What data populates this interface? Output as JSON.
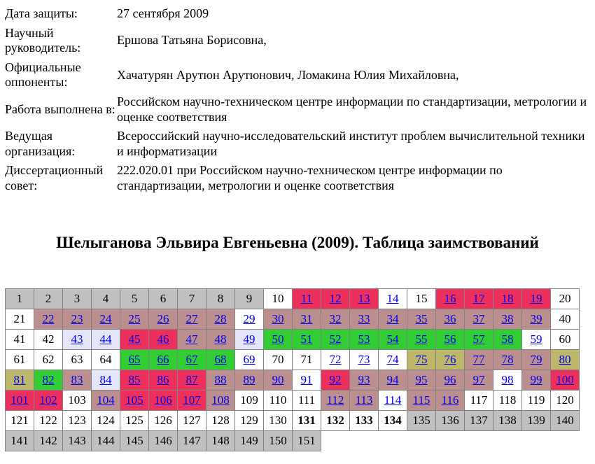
{
  "page": {
    "background": "#FFFFFF",
    "text_color": "#000000"
  },
  "meta": {
    "rows": [
      {
        "label": "Дата защиты:",
        "value": "27 сентября 2009"
      },
      {
        "label": "Научный руководитель:",
        "value": "Ершова Татьяна Борисовна,"
      },
      {
        "label": "Официальные оппоненты:",
        "value": "Хачатурян Арутюн Арутюнович, Ломакина Юлия Михайловна,"
      },
      {
        "label": "Работа выполнена в:",
        "value": "Российском научно-техническом центре информации по стандартизации, метрологии и оценке соответствия"
      },
      {
        "label": "Ведущая организация:",
        "value": "Всероссийский научно-исследовательский институт проблем вычислительной техники и информатизации"
      },
      {
        "label": "Диссертационный совет:",
        "value": "222.020.01 при Российском научно-техническом центре информации по стандартизации, метрологии и оценке соответствия"
      }
    ]
  },
  "title": "Шелыганова Эльвира Евгеньевна (2009). Таблица заимствований",
  "colors": {
    "white": "#FFFFFF",
    "silver": "#C0C0C0",
    "crimson": "#ED2F5B",
    "rosybrown": "#BC8F8F",
    "limegreen": "#32CD32",
    "darkkhaki": "#BDB76B",
    "lavender": "#E6E6FA",
    "link": "#0000EE",
    "border": "#828282"
  },
  "grid": {
    "columns": 20,
    "cells": [
      {
        "n": 1,
        "bg": "silver",
        "link": false
      },
      {
        "n": 2,
        "bg": "silver",
        "link": false
      },
      {
        "n": 3,
        "bg": "silver",
        "link": false
      },
      {
        "n": 4,
        "bg": "silver",
        "link": false
      },
      {
        "n": 5,
        "bg": "silver",
        "link": false
      },
      {
        "n": 6,
        "bg": "silver",
        "link": false
      },
      {
        "n": 7,
        "bg": "silver",
        "link": false
      },
      {
        "n": 8,
        "bg": "silver",
        "link": false
      },
      {
        "n": 9,
        "bg": "silver",
        "link": false
      },
      {
        "n": 10,
        "bg": "white",
        "link": false
      },
      {
        "n": 11,
        "bg": "crimson",
        "link": true
      },
      {
        "n": 12,
        "bg": "crimson",
        "link": true
      },
      {
        "n": 13,
        "bg": "crimson",
        "link": true
      },
      {
        "n": 14,
        "bg": "white",
        "link": true
      },
      {
        "n": 15,
        "bg": "white",
        "link": false
      },
      {
        "n": 16,
        "bg": "crimson",
        "link": true
      },
      {
        "n": 17,
        "bg": "crimson",
        "link": true
      },
      {
        "n": 18,
        "bg": "crimson",
        "link": true
      },
      {
        "n": 19,
        "bg": "crimson",
        "link": true
      },
      {
        "n": 20,
        "bg": "white",
        "link": false
      },
      {
        "n": 21,
        "bg": "white",
        "link": false
      },
      {
        "n": 22,
        "bg": "rosybrown",
        "link": true
      },
      {
        "n": 23,
        "bg": "rosybrown",
        "link": true
      },
      {
        "n": 24,
        "bg": "rosybrown",
        "link": true
      },
      {
        "n": 25,
        "bg": "rosybrown",
        "link": true
      },
      {
        "n": 26,
        "bg": "rosybrown",
        "link": true
      },
      {
        "n": 27,
        "bg": "rosybrown",
        "link": true
      },
      {
        "n": 28,
        "bg": "rosybrown",
        "link": true
      },
      {
        "n": 29,
        "bg": "white",
        "link": true
      },
      {
        "n": 30,
        "bg": "rosybrown",
        "link": true
      },
      {
        "n": 31,
        "bg": "rosybrown",
        "link": true
      },
      {
        "n": 32,
        "bg": "rosybrown",
        "link": true
      },
      {
        "n": 33,
        "bg": "rosybrown",
        "link": true
      },
      {
        "n": 34,
        "bg": "rosybrown",
        "link": true
      },
      {
        "n": 35,
        "bg": "rosybrown",
        "link": true
      },
      {
        "n": 36,
        "bg": "rosybrown",
        "link": true
      },
      {
        "n": 37,
        "bg": "rosybrown",
        "link": true
      },
      {
        "n": 38,
        "bg": "rosybrown",
        "link": true
      },
      {
        "n": 39,
        "bg": "rosybrown",
        "link": true
      },
      {
        "n": 40,
        "bg": "white",
        "link": false
      },
      {
        "n": 41,
        "bg": "white",
        "link": false
      },
      {
        "n": 42,
        "bg": "white",
        "link": false
      },
      {
        "n": 43,
        "bg": "lavender",
        "link": true
      },
      {
        "n": 44,
        "bg": "lavender",
        "link": true
      },
      {
        "n": 45,
        "bg": "crimson",
        "link": true
      },
      {
        "n": 46,
        "bg": "crimson",
        "link": true
      },
      {
        "n": 47,
        "bg": "rosybrown",
        "link": true
      },
      {
        "n": 48,
        "bg": "rosybrown",
        "link": true
      },
      {
        "n": 49,
        "bg": "lavender",
        "link": true
      },
      {
        "n": 50,
        "bg": "limegreen",
        "link": true
      },
      {
        "n": 51,
        "bg": "limegreen",
        "link": true
      },
      {
        "n": 52,
        "bg": "limegreen",
        "link": true
      },
      {
        "n": 53,
        "bg": "limegreen",
        "link": true
      },
      {
        "n": 54,
        "bg": "limegreen",
        "link": true
      },
      {
        "n": 55,
        "bg": "limegreen",
        "link": true
      },
      {
        "n": 56,
        "bg": "limegreen",
        "link": true
      },
      {
        "n": 57,
        "bg": "limegreen",
        "link": true
      },
      {
        "n": 58,
        "bg": "limegreen",
        "link": true
      },
      {
        "n": 59,
        "bg": "white",
        "link": true
      },
      {
        "n": 60,
        "bg": "white",
        "link": false
      },
      {
        "n": 61,
        "bg": "white",
        "link": false
      },
      {
        "n": 62,
        "bg": "white",
        "link": false
      },
      {
        "n": 63,
        "bg": "white",
        "link": false
      },
      {
        "n": 64,
        "bg": "white",
        "link": false
      },
      {
        "n": 65,
        "bg": "limegreen",
        "link": true
      },
      {
        "n": 66,
        "bg": "limegreen",
        "link": true
      },
      {
        "n": 67,
        "bg": "limegreen",
        "link": true
      },
      {
        "n": 68,
        "bg": "limegreen",
        "link": true
      },
      {
        "n": 69,
        "bg": "white",
        "link": true
      },
      {
        "n": 70,
        "bg": "white",
        "link": false
      },
      {
        "n": 71,
        "bg": "white",
        "link": false
      },
      {
        "n": 72,
        "bg": "white",
        "link": true
      },
      {
        "n": 73,
        "bg": "white",
        "link": true
      },
      {
        "n": 74,
        "bg": "white",
        "link": true
      },
      {
        "n": 75,
        "bg": "darkkhaki",
        "link": true
      },
      {
        "n": 76,
        "bg": "darkkhaki",
        "link": true
      },
      {
        "n": 77,
        "bg": "rosybrown",
        "link": true
      },
      {
        "n": 78,
        "bg": "rosybrown",
        "link": true
      },
      {
        "n": 79,
        "bg": "rosybrown",
        "link": true
      },
      {
        "n": 80,
        "bg": "darkkhaki",
        "link": true
      },
      {
        "n": 81,
        "bg": "darkkhaki",
        "link": true
      },
      {
        "n": 82,
        "bg": "limegreen",
        "link": true
      },
      {
        "n": 83,
        "bg": "rosybrown",
        "link": true
      },
      {
        "n": 84,
        "bg": "lavender",
        "link": true
      },
      {
        "n": 85,
        "bg": "crimson",
        "link": true
      },
      {
        "n": 86,
        "bg": "crimson",
        "link": true
      },
      {
        "n": 87,
        "bg": "crimson",
        "link": true
      },
      {
        "n": 88,
        "bg": "rosybrown",
        "link": true
      },
      {
        "n": 89,
        "bg": "rosybrown",
        "link": true
      },
      {
        "n": 90,
        "bg": "rosybrown",
        "link": true
      },
      {
        "n": 91,
        "bg": "white",
        "link": true
      },
      {
        "n": 92,
        "bg": "crimson",
        "link": true
      },
      {
        "n": 93,
        "bg": "rosybrown",
        "link": true
      },
      {
        "n": 94,
        "bg": "rosybrown",
        "link": true
      },
      {
        "n": 95,
        "bg": "rosybrown",
        "link": true
      },
      {
        "n": 96,
        "bg": "rosybrown",
        "link": true
      },
      {
        "n": 97,
        "bg": "rosybrown",
        "link": true
      },
      {
        "n": 98,
        "bg": "white",
        "link": true
      },
      {
        "n": 99,
        "bg": "rosybrown",
        "link": true
      },
      {
        "n": 100,
        "bg": "crimson",
        "link": true
      },
      {
        "n": 101,
        "bg": "crimson",
        "link": true
      },
      {
        "n": 102,
        "bg": "crimson",
        "link": true
      },
      {
        "n": 103,
        "bg": "white",
        "link": false
      },
      {
        "n": 104,
        "bg": "rosybrown",
        "link": true
      },
      {
        "n": 105,
        "bg": "crimson",
        "link": true
      },
      {
        "n": 106,
        "bg": "crimson",
        "link": true
      },
      {
        "n": 107,
        "bg": "crimson",
        "link": true
      },
      {
        "n": 108,
        "bg": "rosybrown",
        "link": true
      },
      {
        "n": 109,
        "bg": "white",
        "link": false
      },
      {
        "n": 110,
        "bg": "white",
        "link": false
      },
      {
        "n": 111,
        "bg": "white",
        "link": false
      },
      {
        "n": 112,
        "bg": "rosybrown",
        "link": true
      },
      {
        "n": 113,
        "bg": "rosybrown",
        "link": true
      },
      {
        "n": 114,
        "bg": "white",
        "link": true
      },
      {
        "n": 115,
        "bg": "rosybrown",
        "link": true
      },
      {
        "n": 116,
        "bg": "rosybrown",
        "link": true
      },
      {
        "n": 117,
        "bg": "white",
        "link": false
      },
      {
        "n": 118,
        "bg": "white",
        "link": false
      },
      {
        "n": 119,
        "bg": "white",
        "link": false
      },
      {
        "n": 120,
        "bg": "white",
        "link": false
      },
      {
        "n": 121,
        "bg": "white",
        "link": false
      },
      {
        "n": 122,
        "bg": "white",
        "link": false
      },
      {
        "n": 123,
        "bg": "white",
        "link": false
      },
      {
        "n": 124,
        "bg": "white",
        "link": false
      },
      {
        "n": 125,
        "bg": "white",
        "link": false
      },
      {
        "n": 126,
        "bg": "white",
        "link": false
      },
      {
        "n": 127,
        "bg": "white",
        "link": false
      },
      {
        "n": 128,
        "bg": "white",
        "link": false
      },
      {
        "n": 129,
        "bg": "white",
        "link": false
      },
      {
        "n": 130,
        "bg": "white",
        "link": false
      },
      {
        "n": 131,
        "bg": "white",
        "link": false,
        "bold": true
      },
      {
        "n": 132,
        "bg": "white",
        "link": false,
        "bold": true
      },
      {
        "n": 133,
        "bg": "white",
        "link": false,
        "bold": true
      },
      {
        "n": 134,
        "bg": "white",
        "link": false,
        "bold": true
      },
      {
        "n": 135,
        "bg": "silver",
        "link": false
      },
      {
        "n": 136,
        "bg": "silver",
        "link": false
      },
      {
        "n": 137,
        "bg": "silver",
        "link": false
      },
      {
        "n": 138,
        "bg": "silver",
        "link": false
      },
      {
        "n": 139,
        "bg": "silver",
        "link": false
      },
      {
        "n": 140,
        "bg": "silver",
        "link": false
      },
      {
        "n": 141,
        "bg": "silver",
        "link": false
      },
      {
        "n": 142,
        "bg": "silver",
        "link": false
      },
      {
        "n": 143,
        "bg": "silver",
        "link": false
      },
      {
        "n": 144,
        "bg": "silver",
        "link": false
      },
      {
        "n": 145,
        "bg": "silver",
        "link": false
      },
      {
        "n": 146,
        "bg": "silver",
        "link": false
      },
      {
        "n": 147,
        "bg": "silver",
        "link": false
      },
      {
        "n": 148,
        "bg": "silver",
        "link": false
      },
      {
        "n": 149,
        "bg": "silver",
        "link": false
      },
      {
        "n": 150,
        "bg": "silver",
        "link": false
      },
      {
        "n": 151,
        "bg": "silver",
        "link": false
      }
    ]
  }
}
